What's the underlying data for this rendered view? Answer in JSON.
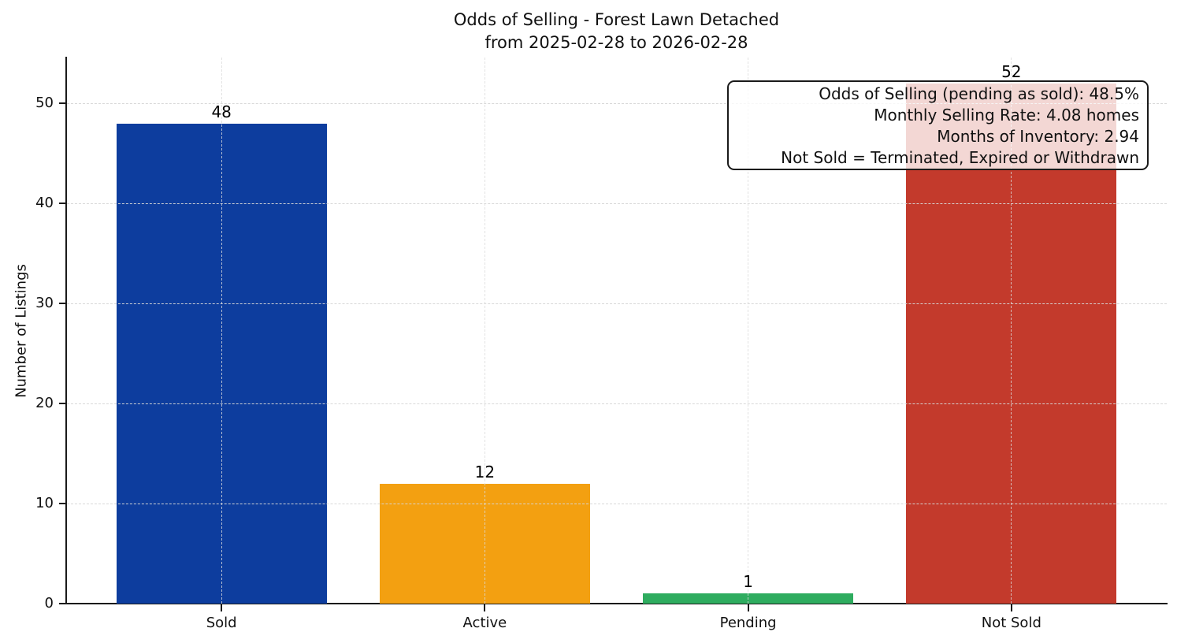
{
  "figure": {
    "title_line1": "Odds of Selling - Forest Lawn Detached",
    "title_line2": "from 2025-02-28 to 2026-02-28"
  },
  "y_axis": {
    "label": "Number of Listings",
    "ticks": [
      "0",
      "10",
      "20",
      "30",
      "40",
      "50"
    ]
  },
  "annotation": {
    "line1": "Odds of Selling (pending as sold): 48.5%",
    "line2": "Monthly Selling Rate: 4.08 homes",
    "line3": "Months of Inventory: 2.94",
    "line4": "Not Sold = Terminated, Expired or Withdrawn"
  },
  "chart_data": {
    "type": "bar",
    "title": "Odds of Selling - Forest Lawn Detached\nfrom 2025-02-28 to 2026-02-28",
    "categories": [
      "Sold",
      "Active",
      "Pending",
      "Not Sold"
    ],
    "values": [
      48,
      12,
      1,
      52
    ],
    "value_labels": [
      "48",
      "12",
      "1",
      "52"
    ],
    "colors": [
      "#0d3d9e",
      "#f3a011",
      "#2eac5f",
      "#c33a2c"
    ],
    "xlabel": "",
    "ylabel": "Number of Listings",
    "ylim": [
      0,
      54.6
    ],
    "yticks": [
      0,
      10,
      20,
      30,
      40,
      50
    ],
    "grid": "dashed gridlines on both axes, drawn over bars",
    "legend": "none",
    "annotation_position": "top-right",
    "annotation_lines": [
      "Odds of Selling (pending as sold): 48.5%",
      "Monthly Selling Rate: 4.08 homes",
      "Months of Inventory: 2.94",
      "Not Sold = Terminated, Expired or Withdrawn"
    ]
  }
}
